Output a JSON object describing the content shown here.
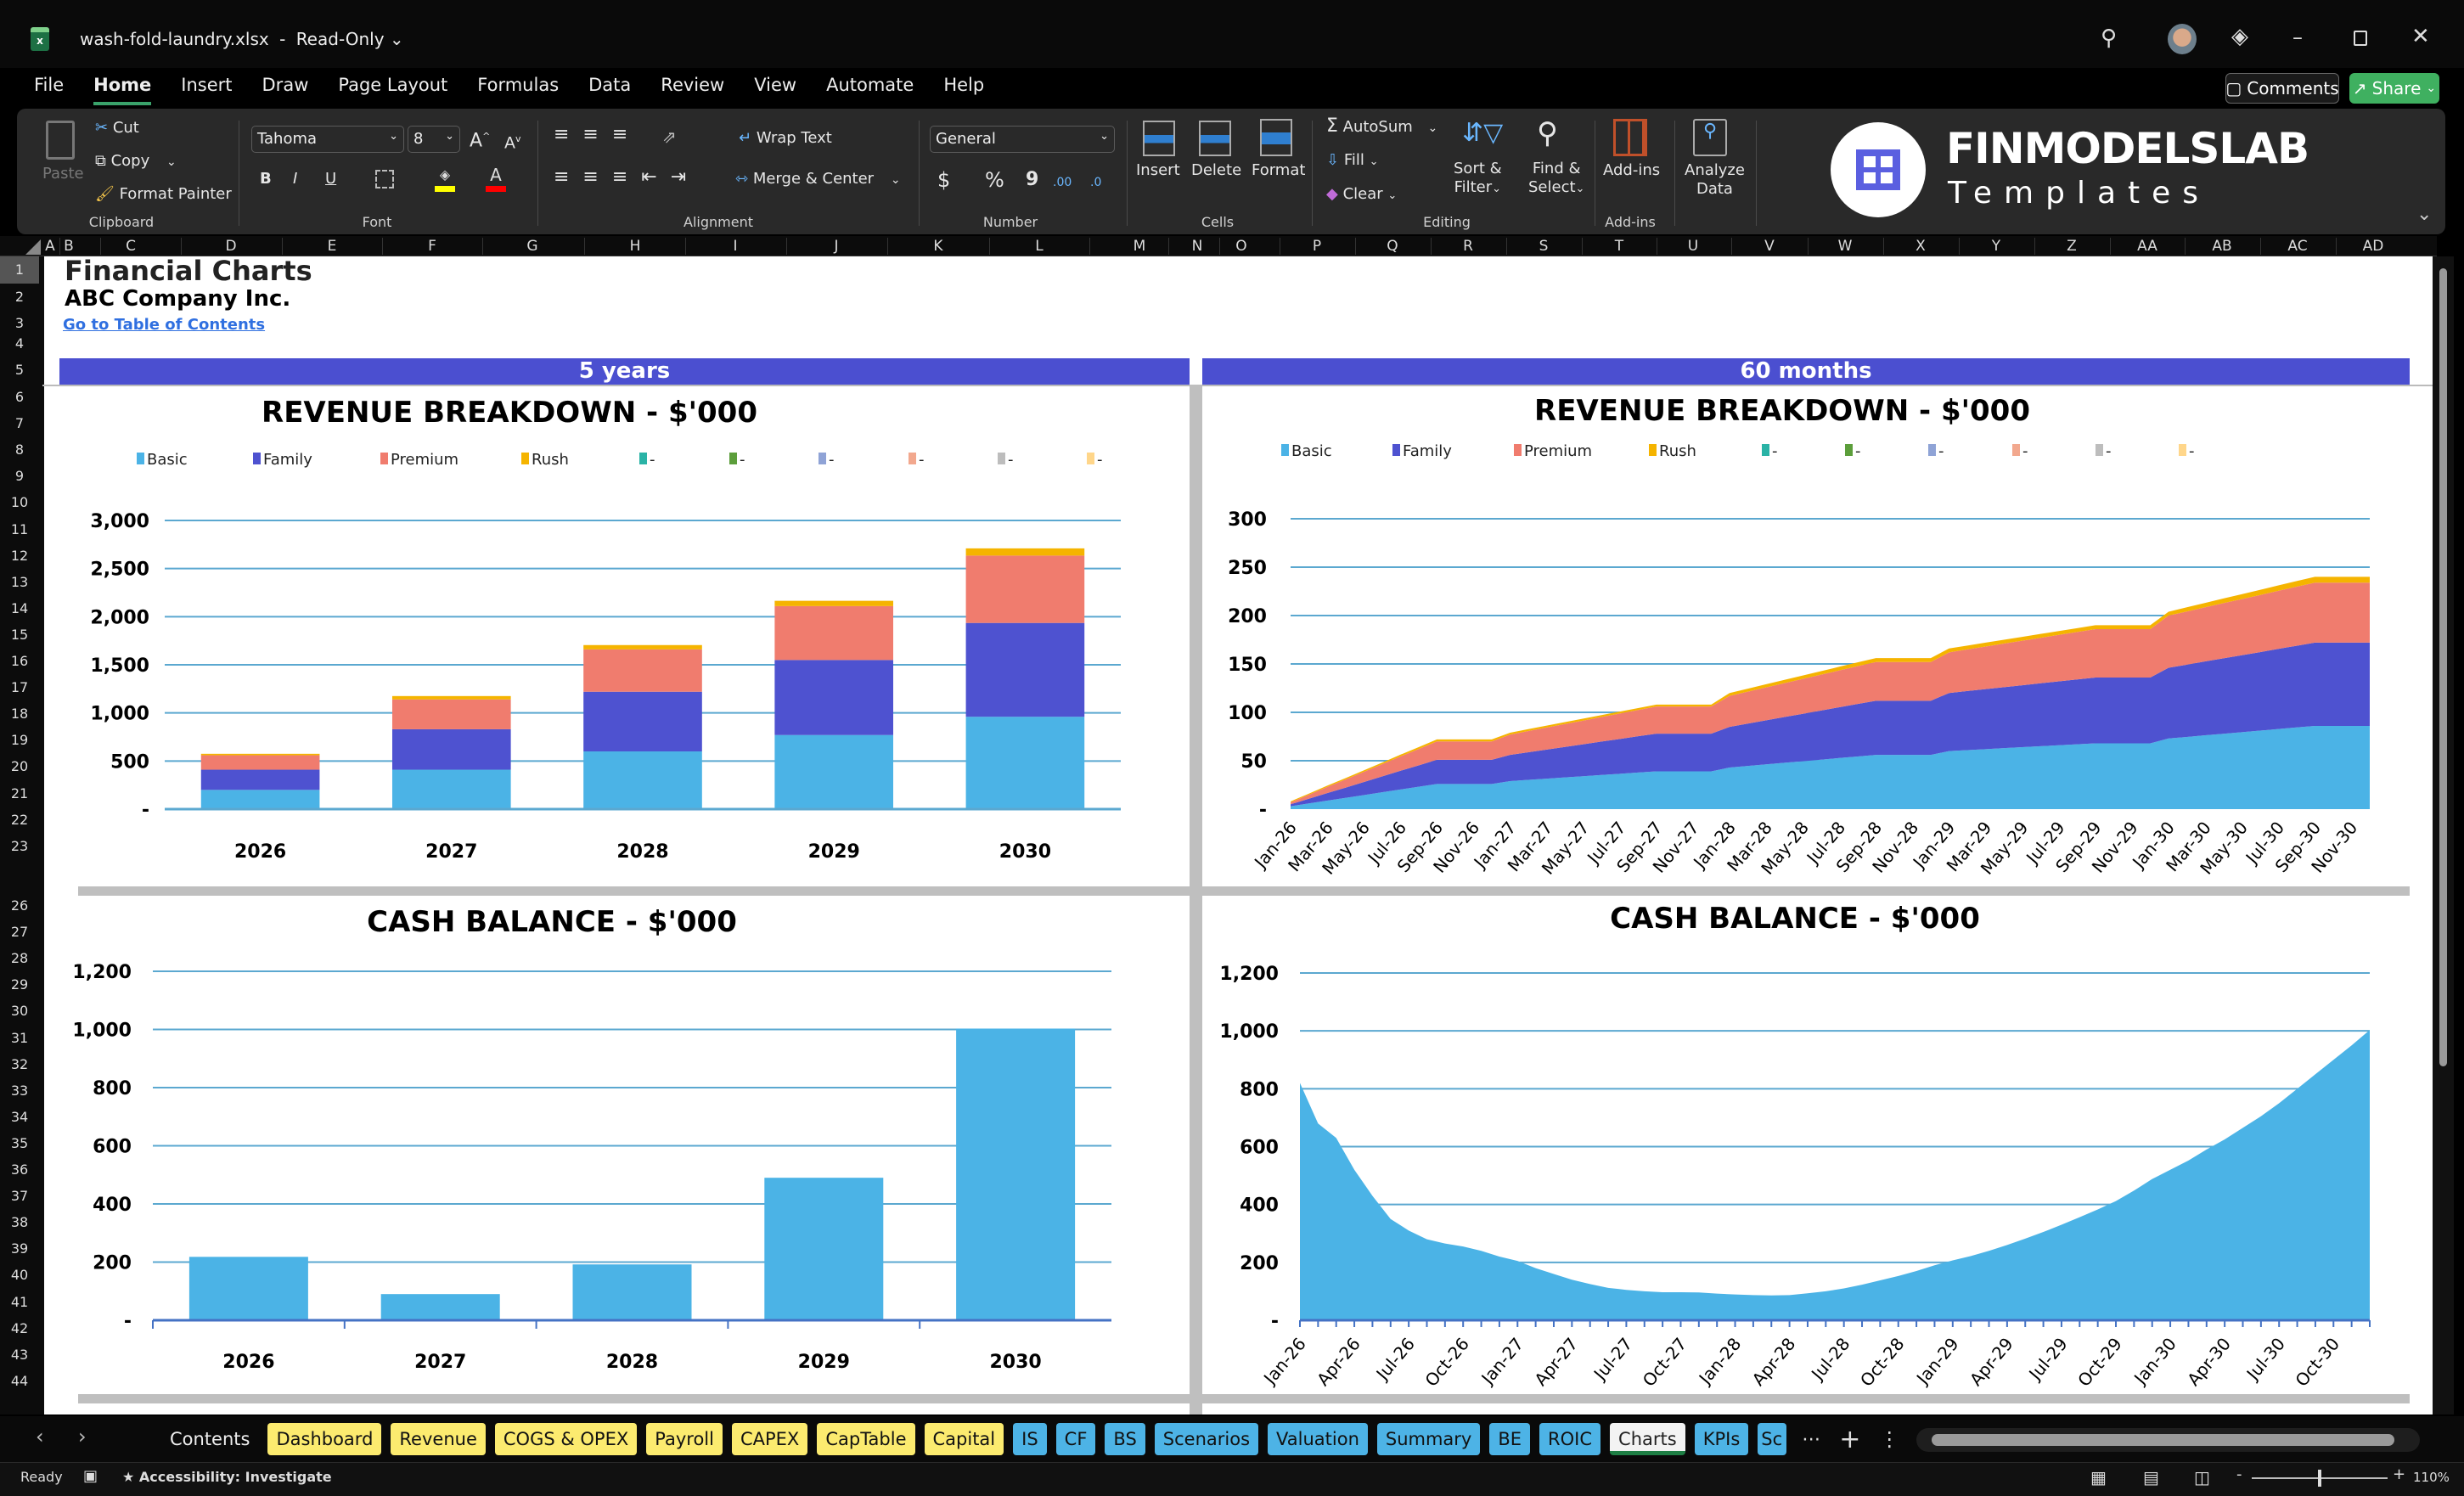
{
  "window": {
    "filename": "wash-fold-laundry.xlsx",
    "separator": "-",
    "mode": "Read-Only"
  },
  "menu": [
    "File",
    "Home",
    "Insert",
    "Draw",
    "Page Layout",
    "Formulas",
    "Data",
    "Review",
    "View",
    "Automate",
    "Help"
  ],
  "active_menu": "Home",
  "header_buttons": {
    "comments": "Comments",
    "share": "Share"
  },
  "ribbon": {
    "clipboard": {
      "paste": "Paste",
      "cut": "Cut",
      "copy": "Copy",
      "format_painter": "Format Painter",
      "label": "Clipboard"
    },
    "font": {
      "name": "Tahoma",
      "size": "8",
      "bold": "B",
      "italic": "I",
      "underline": "U",
      "label": "Font"
    },
    "alignment": {
      "wrap_text": "Wrap Text",
      "merge_center": "Merge & Center",
      "label": "Alignment"
    },
    "number": {
      "format": "General",
      "currency": "$",
      "percent": "%",
      "comma": "9",
      "inc_decimal": ".00",
      "dec_decimal": ".0",
      "label": "Number"
    },
    "cells": {
      "insert": "Insert",
      "delete": "Delete",
      "format": "Format",
      "label": "Cells"
    },
    "editing": {
      "autosum": "AutoSum",
      "fill": "Fill",
      "clear": "Clear",
      "sort_filter_1": "Sort &",
      "sort_filter_2": "Filter",
      "find_select_1": "Find &",
      "find_select_2": "Select",
      "label": "Editing"
    },
    "addins": {
      "addins": "Add-ins",
      "label": "Add-ins"
    },
    "analyze": {
      "line1": "Analyze",
      "line2": "Data"
    }
  },
  "logo": {
    "brand": "FINMODELSLAB",
    "sub": "Templates"
  },
  "columns": [
    "A",
    "B",
    "C",
    "D",
    "E",
    "F",
    "G",
    "H",
    "I",
    "J",
    "K",
    "L",
    "M",
    "N",
    "O",
    "P",
    "Q",
    "R",
    "S",
    "T",
    "U",
    "V",
    "W",
    "X",
    "Y",
    "Z",
    "AA",
    "AB",
    "AC",
    "AD"
  ],
  "rows": [
    "1",
    "2",
    "3",
    "4",
    "5",
    "6",
    "7",
    "8",
    "9",
    "10",
    "11",
    "12",
    "13",
    "14",
    "15",
    "16",
    "17",
    "18",
    "19",
    "20",
    "21",
    "22",
    "23",
    "26",
    "27",
    "28",
    "29",
    "30",
    "31",
    "32",
    "33",
    "34",
    "35",
    "36",
    "37",
    "38",
    "39",
    "40",
    "41",
    "42",
    "43",
    "44"
  ],
  "sheet": {
    "title": "Financial Charts",
    "company": "ABC Company Inc.",
    "link": "Go to Table of Contents",
    "band_left": "5 years",
    "band_right": "60 months"
  },
  "legend": [
    {
      "label": "Basic",
      "color": "#4BB3E6"
    },
    {
      "label": "Family",
      "color": "#4E52D0"
    },
    {
      "label": "Premium",
      "color": "#F07C6E"
    },
    {
      "label": "Rush",
      "color": "#F5B400"
    },
    {
      "label": "-",
      "color": "#2AB3A6"
    },
    {
      "label": "-",
      "color": "#5C9E3B"
    },
    {
      "label": "-",
      "color": "#8FA3D6"
    },
    {
      "label": "-",
      "color": "#F2A88E"
    },
    {
      "label": "-",
      "color": "#BDBDBD"
    },
    {
      "label": "-",
      "color": "#FFD68A"
    }
  ],
  "chart_data": [
    {
      "type": "bar",
      "stacked": true,
      "title": "REVENUE BREAKDOWN - $'000",
      "categories": [
        "2026",
        "2027",
        "2028",
        "2029",
        "2030"
      ],
      "series": [
        {
          "name": "Basic",
          "values": [
            200,
            410,
            600,
            770,
            960
          ]
        },
        {
          "name": "Family",
          "values": [
            210,
            420,
            620,
            780,
            975
          ]
        },
        {
          "name": "Premium",
          "values": [
            150,
            310,
            440,
            560,
            700
          ]
        },
        {
          "name": "Rush",
          "values": [
            15,
            35,
            45,
            55,
            75
          ]
        }
      ],
      "yticks": [
        "-",
        "500",
        "1,000",
        "1,500",
        "2,000",
        "2,500",
        "3,000"
      ],
      "ylim": [
        0,
        3000
      ],
      "grid": true,
      "legend": "top"
    },
    {
      "type": "area",
      "stacked": true,
      "title": "REVENUE BREAKDOWN - $'000",
      "categories": [
        "Jan-26",
        "Feb-26",
        "Mar-26",
        "Apr-26",
        "May-26",
        "Jun-26",
        "Jul-26",
        "Aug-26",
        "Sep-26",
        "Oct-26",
        "Nov-26",
        "Dec-26",
        "Jan-27",
        "Feb-27",
        "Mar-27",
        "Apr-27",
        "May-27",
        "Jun-27",
        "Jul-27",
        "Aug-27",
        "Sep-27",
        "Oct-27",
        "Nov-27",
        "Dec-27",
        "Jan-28",
        "Feb-28",
        "Mar-28",
        "Apr-28",
        "May-28",
        "Jun-28",
        "Jul-28",
        "Aug-28",
        "Sep-28",
        "Oct-28",
        "Nov-28",
        "Dec-28",
        "Jan-29",
        "Feb-29",
        "Mar-29",
        "Apr-29",
        "May-29",
        "Jun-29",
        "Jul-29",
        "Aug-29",
        "Sep-29",
        "Oct-29",
        "Nov-29",
        "Dec-29",
        "Jan-30",
        "Feb-30",
        "Mar-30",
        "Apr-30",
        "May-30",
        "Jun-30",
        "Jul-30",
        "Aug-30",
        "Sep-30",
        "Oct-30",
        "Nov-30",
        "Dec-30"
      ],
      "series": [
        {
          "name": "Basic",
          "values": [
            3,
            5.9,
            8.8,
            11.6,
            14.5,
            17.4,
            20.3,
            23.1,
            26,
            26,
            26,
            26,
            29,
            30.3,
            31.5,
            32.8,
            34,
            35.3,
            36.5,
            37.8,
            39,
            39,
            39,
            39,
            43,
            44.6,
            46.3,
            47.9,
            49.5,
            51.1,
            52.8,
            54.4,
            56,
            56,
            56,
            56,
            60,
            61,
            62,
            63,
            64,
            65,
            66,
            67,
            68,
            68,
            68,
            68,
            73,
            74.6,
            76.3,
            77.9,
            79.5,
            81.1,
            82.8,
            84.4,
            86,
            86,
            86,
            86
          ]
        },
        {
          "name": "Family",
          "values": [
            2,
            4.9,
            7.8,
            10.6,
            13.5,
            16.4,
            19.3,
            22.1,
            25,
            25,
            25,
            25,
            27,
            28.5,
            30,
            31.5,
            33,
            34.5,
            36,
            37.5,
            39,
            39,
            39,
            39,
            42,
            43.8,
            45.5,
            47.3,
            49,
            50.8,
            52.5,
            54.3,
            56,
            56,
            56,
            56,
            60,
            61,
            62,
            63,
            64,
            65,
            66,
            67,
            68,
            68,
            68,
            68,
            73,
            74.6,
            76.3,
            77.9,
            79.5,
            81.1,
            82.8,
            84.4,
            86,
            86,
            86,
            86
          ]
        },
        {
          "name": "Premium",
          "values": [
            2,
            4.1,
            6.3,
            8.4,
            10.5,
            12.6,
            14.8,
            16.9,
            19,
            19,
            19,
            19,
            21,
            21.9,
            22.8,
            23.6,
            24.5,
            25.4,
            26.3,
            27.1,
            28,
            28,
            28,
            28,
            32,
            33,
            34,
            35,
            36,
            37,
            38,
            39,
            40,
            40,
            40,
            40,
            42,
            43,
            44,
            45,
            46,
            47,
            48,
            49,
            50,
            50,
            50,
            50,
            54,
            55,
            56,
            57,
            58,
            59,
            60,
            61,
            62,
            62,
            62,
            62
          ]
        },
        {
          "name": "Rush",
          "values": [
            1,
            1.1,
            1.3,
            1.4,
            1.5,
            1.6,
            1.8,
            1.9,
            2,
            2,
            2,
            2,
            2,
            2,
            2,
            2,
            2,
            2,
            2,
            2,
            2,
            2,
            2,
            2,
            3,
            3.1,
            3.3,
            3.4,
            3.5,
            3.6,
            3.8,
            3.9,
            4,
            4,
            4,
            4,
            4,
            4,
            4,
            4,
            4,
            4,
            4,
            4,
            4,
            4,
            4,
            4,
            4,
            4.3,
            4.5,
            4.8,
            5,
            5.3,
            5.5,
            5.8,
            6,
            6,
            6,
            6
          ]
        }
      ],
      "yticks": [
        "-",
        "50",
        "100",
        "150",
        "200",
        "250",
        "300"
      ],
      "ylim": [
        0,
        300
      ],
      "grid": true,
      "legend": "top"
    },
    {
      "type": "bar",
      "title": "CASH BALANCE - $'000",
      "categories": [
        "2026",
        "2027",
        "2028",
        "2029",
        "2030"
      ],
      "values": [
        218,
        90,
        192,
        490,
        1003
      ],
      "yticks": [
        "-",
        "200",
        "400",
        "600",
        "800",
        "1,000",
        "1,200"
      ],
      "ylim": [
        0,
        1200
      ],
      "grid": true
    },
    {
      "type": "area",
      "title": "CASH BALANCE - $'000",
      "categories": [
        "Jan-26",
        "Feb-26",
        "Mar-26",
        "Apr-26",
        "May-26",
        "Jun-26",
        "Jul-26",
        "Aug-26",
        "Sep-26",
        "Oct-26",
        "Nov-26",
        "Dec-26",
        "Jan-27",
        "Feb-27",
        "Mar-27",
        "Apr-27",
        "May-27",
        "Jun-27",
        "Jul-27",
        "Aug-27",
        "Sep-27",
        "Oct-27",
        "Nov-27",
        "Dec-27",
        "Jan-28",
        "Feb-28",
        "Mar-28",
        "Apr-28",
        "May-28",
        "Jun-28",
        "Jul-28",
        "Aug-28",
        "Sep-28",
        "Oct-28",
        "Nov-28",
        "Dec-28",
        "Jan-29",
        "Feb-29",
        "Mar-29",
        "Apr-29",
        "May-29",
        "Jun-29",
        "Jul-29",
        "Aug-29",
        "Sep-29",
        "Oct-29",
        "Nov-29",
        "Dec-29",
        "Jan-30",
        "Feb-30",
        "Mar-30",
        "Apr-30",
        "May-30",
        "Jun-30",
        "Jul-30",
        "Aug-30",
        "Sep-30",
        "Oct-30",
        "Nov-30",
        "Dec-30"
      ],
      "values": [
        820,
        680,
        630,
        520,
        430,
        350,
        310,
        280,
        265,
        255,
        240,
        220,
        205,
        180,
        160,
        140,
        125,
        112,
        105,
        100,
        97,
        97,
        96,
        92,
        89,
        87,
        86,
        87,
        93,
        100,
        110,
        123,
        138,
        153,
        170,
        190,
        207,
        222,
        240,
        260,
        282,
        305,
        330,
        356,
        383,
        412,
        448,
        488,
        520,
        552,
        590,
        625,
        665,
        705,
        750,
        800,
        850,
        900,
        950,
        1003
      ],
      "yticks": [
        "-",
        "200",
        "400",
        "600",
        "800",
        "1,000",
        "1,200"
      ],
      "ylim": [
        0,
        1200
      ],
      "grid": true
    }
  ],
  "tabs": [
    {
      "label": "Contents",
      "color": ""
    },
    {
      "label": "Dashboard",
      "color": "#FCEB6F"
    },
    {
      "label": "Revenue",
      "color": "#FCEB6F"
    },
    {
      "label": "COGS & OPEX",
      "color": "#FCEB6F"
    },
    {
      "label": "Payroll",
      "color": "#FCEB6F"
    },
    {
      "label": "CAPEX",
      "color": "#FCEB6F"
    },
    {
      "label": "CapTable",
      "color": "#FCEB6F"
    },
    {
      "label": "Capital",
      "color": "#FCEB6F"
    },
    {
      "label": "IS",
      "color": "#4DB3E6"
    },
    {
      "label": "CF",
      "color": "#4DB3E6"
    },
    {
      "label": "BS",
      "color": "#4DB3E6"
    },
    {
      "label": "Scenarios",
      "color": "#4DB3E6"
    },
    {
      "label": "Valuation",
      "color": "#4DB3E6"
    },
    {
      "label": "Summary",
      "color": "#4DB3E6"
    },
    {
      "label": "BE",
      "color": "#4DB3E6"
    },
    {
      "label": "ROIC",
      "color": "#4DB3E6"
    },
    {
      "label": "Charts",
      "color": "active"
    },
    {
      "label": "KPIs",
      "color": "#4DB3E6"
    },
    {
      "label": "Sc",
      "color": "#4DB3E6"
    }
  ],
  "status": {
    "ready": "Ready",
    "accessibility": "Accessibility: Investigate",
    "zoom": "110%"
  },
  "colors": {
    "accent_band": "#4B4FD0",
    "gridline": "#5BA8D0",
    "share_green": "#3FB060"
  }
}
